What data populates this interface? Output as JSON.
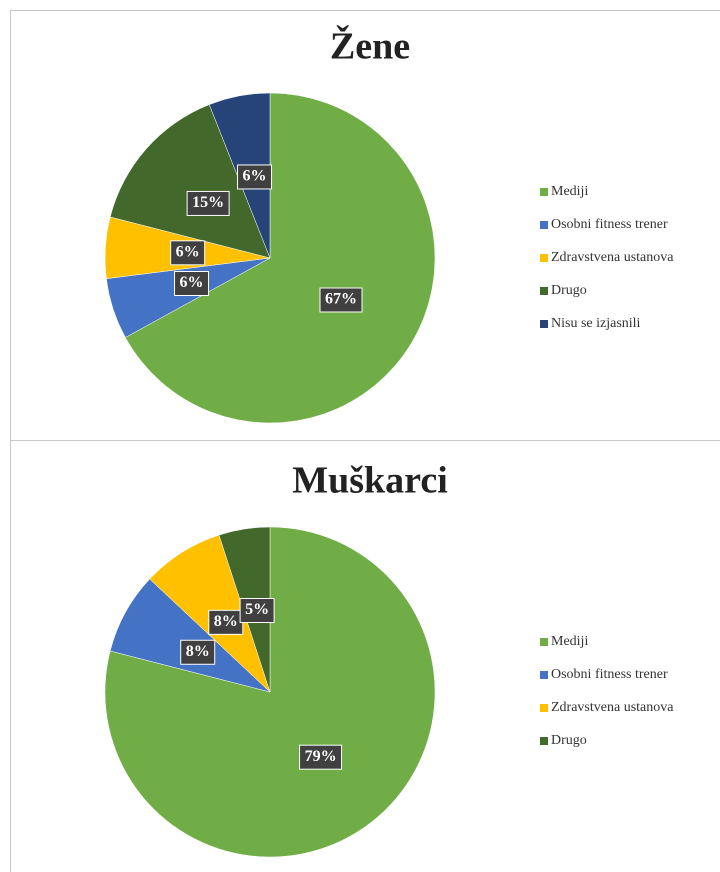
{
  "chart_data": [
    {
      "type": "pie",
      "title": "Žene",
      "categories": [
        "Mediji",
        "Osobni fitness trener",
        "Zdravstvena ustanova",
        "Drugo",
        "Nisu se izjasnili"
      ],
      "values": [
        67,
        6,
        6,
        15,
        6
      ],
      "value_labels": [
        "67%",
        "6%",
        "6%",
        "15%",
        "6%"
      ],
      "colors": [
        "#70ad47",
        "#4472c4",
        "#ffc000",
        "#43682b",
        "#264478"
      ],
      "legend": "right"
    },
    {
      "type": "pie",
      "title": "Muškarci",
      "categories": [
        "Mediji",
        "Osobni fitness trener",
        "Zdravstvena ustanova",
        "Drugo"
      ],
      "values": [
        79,
        8,
        8,
        5
      ],
      "value_labels": [
        "79%",
        "8%",
        "8%",
        "5%"
      ],
      "colors": [
        "#70ad47",
        "#4472c4",
        "#ffc000",
        "#43682b"
      ],
      "legend": "right"
    }
  ]
}
